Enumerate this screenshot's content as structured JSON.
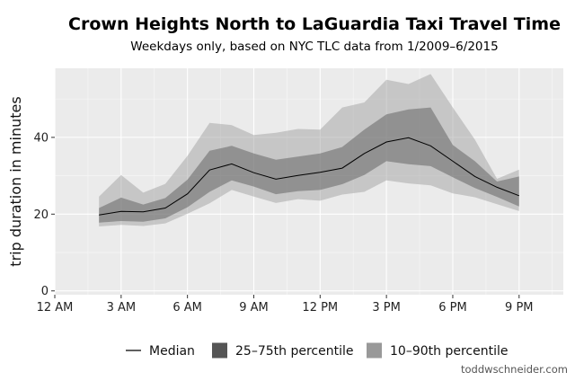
{
  "chart_data": {
    "type": "area",
    "title": "Crown Heights North to LaGuardia Taxi Travel Time",
    "subtitle": "Weekdays only, based on NYC TLC data from 1/2009–6/2015",
    "xlabel": "",
    "ylabel": "trip duration in minutes",
    "xlim": [
      0,
      23
    ],
    "ylim": [
      -1,
      58
    ],
    "x_ticks": [
      {
        "value": 0,
        "label": "12 AM"
      },
      {
        "value": 3,
        "label": "3 AM"
      },
      {
        "value": 6,
        "label": "6 AM"
      },
      {
        "value": 9,
        "label": "9 AM"
      },
      {
        "value": 12,
        "label": "12 PM"
      },
      {
        "value": 15,
        "label": "3 PM"
      },
      {
        "value": 18,
        "label": "6 PM"
      },
      {
        "value": 21,
        "label": "9 PM"
      }
    ],
    "y_ticks": [
      {
        "value": 0,
        "label": "0"
      },
      {
        "value": 20,
        "label": "20"
      },
      {
        "value": 40,
        "label": "40"
      }
    ],
    "grid": true,
    "legend_position": "bottom",
    "x": [
      2,
      3,
      4,
      5,
      6,
      7,
      8,
      9,
      10,
      11,
      12,
      13,
      14,
      15,
      16,
      17,
      18,
      19,
      20,
      21
    ],
    "series": [
      {
        "name": "Median",
        "kind": "line",
        "color": "#000000",
        "values": [
          19.8,
          20.7,
          20.6,
          21.6,
          25.3,
          31.5,
          33.1,
          30.8,
          29.1,
          30.1,
          30.9,
          32.0,
          35.8,
          38.8,
          39.9,
          37.8,
          33.8,
          29.8,
          27.0,
          24.8
        ]
      },
      {
        "name": "25–75th percentile",
        "kind": "band",
        "color": "#666666",
        "lower": [
          17.8,
          18.2,
          18.0,
          18.9,
          21.8,
          25.8,
          28.8,
          27.2,
          25.2,
          26.0,
          26.3,
          27.8,
          30.2,
          33.8,
          33.0,
          32.5,
          29.6,
          26.8,
          24.5,
          22.0
        ],
        "upper": [
          21.6,
          24.3,
          22.5,
          24.2,
          29.0,
          36.5,
          37.8,
          35.8,
          34.2,
          35.0,
          35.8,
          37.5,
          42.0,
          46.0,
          47.3,
          47.8,
          38.0,
          33.8,
          28.5,
          29.8
        ]
      },
      {
        "name": "10–90th percentile",
        "kind": "band",
        "color": "#999999",
        "lower": [
          16.8,
          17.2,
          16.9,
          17.6,
          20.1,
          22.8,
          26.3,
          24.6,
          22.9,
          23.9,
          23.5,
          25.1,
          25.8,
          28.8,
          28.0,
          27.5,
          25.4,
          24.4,
          22.6,
          20.8
        ],
        "upper": [
          24.6,
          30.2,
          25.6,
          27.9,
          35.2,
          43.8,
          43.2,
          40.6,
          41.2,
          42.2,
          42.0,
          47.8,
          49.1,
          55.0,
          53.9,
          56.5,
          47.8,
          39.4,
          29.2,
          31.6
        ]
      }
    ],
    "credit": "toddwschneider.com"
  }
}
